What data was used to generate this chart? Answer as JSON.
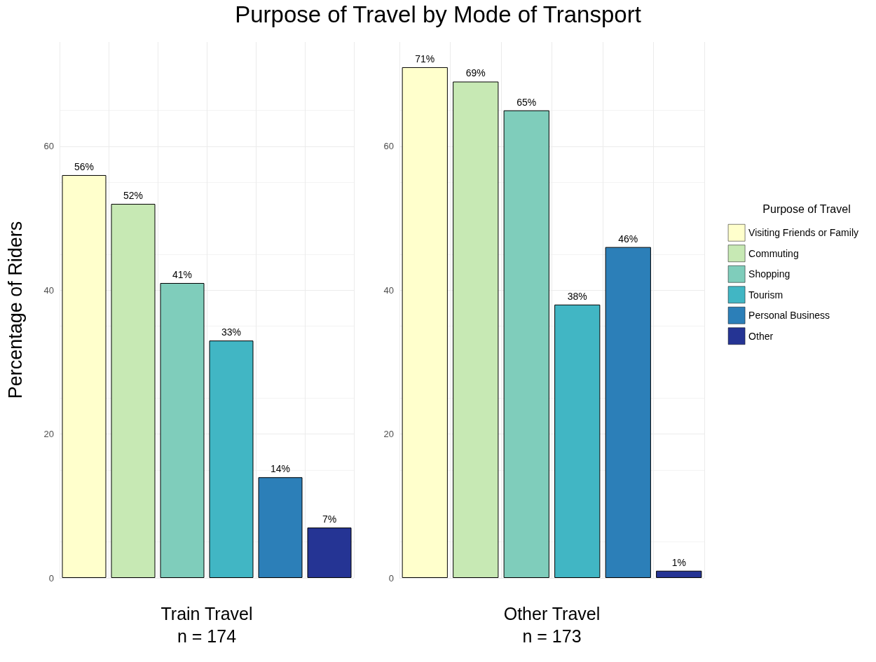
{
  "chart_data": [
    {
      "type": "bar",
      "title": "Purpose of Travel by Mode of Transport",
      "xlabel": "Train Travel\nn = 174",
      "ylabel": "Percentage of Riders",
      "categories": [
        null,
        null,
        null,
        null,
        null,
        null
      ],
      "series": [
        {
          "color": "#ffffcc",
          "values": [
            56,
            null,
            null,
            null,
            null,
            null
          ],
          "value_labels": [
            "56%",
            null,
            null,
            null,
            null,
            null
          ]
        },
        {
          "color": "#c7e9b4",
          "values": [
            null,
            52,
            null,
            null,
            null,
            null
          ],
          "value_labels": [
            null,
            "52%",
            null,
            null,
            null,
            null
          ]
        },
        {
          "color": "#7fcdbb",
          "values": [
            null,
            null,
            41,
            null,
            null,
            null
          ],
          "value_labels": [
            null,
            null,
            "41%",
            null,
            null,
            null
          ]
        },
        {
          "color": "#41b6c4",
          "values": [
            null,
            null,
            null,
            33,
            null,
            null
          ],
          "value_labels": [
            null,
            null,
            null,
            "33%",
            null,
            null
          ]
        },
        {
          "color": "#2c7fb8",
          "values": [
            null,
            null,
            null,
            null,
            14,
            null
          ],
          "value_labels": [
            null,
            null,
            null,
            null,
            "14%",
            null
          ]
        },
        {
          "color": "#253494",
          "values": [
            null,
            null,
            null,
            null,
            null,
            7
          ],
          "value_labels": [
            null,
            null,
            null,
            null,
            null,
            "7%"
          ]
        }
      ],
      "ylim": [
        0,
        74.5
      ],
      "yticks": [
        0,
        20,
        40,
        60
      ],
      "grid": true,
      "tick_labels": "y"
    },
    {
      "type": "bar",
      "xlabel": "Other Travel\nn = 173",
      "categories": [
        null,
        null,
        null,
        null,
        null,
        null
      ],
      "series": [
        {
          "name": "Visiting Friends or Family",
          "color": "#ffffcc",
          "values": [
            71,
            null,
            null,
            null,
            null,
            null
          ],
          "value_labels": [
            "71%",
            null,
            null,
            null,
            null,
            null
          ]
        },
        {
          "name": "Commuting",
          "color": "#c7e9b4",
          "values": [
            null,
            69,
            null,
            null,
            null,
            null
          ],
          "value_labels": [
            null,
            "69%",
            null,
            null,
            null,
            null
          ]
        },
        {
          "name": "Shopping",
          "color": "#7fcdbb",
          "values": [
            null,
            null,
            65,
            null,
            null,
            null
          ],
          "value_labels": [
            null,
            null,
            "65%",
            null,
            null,
            null
          ]
        },
        {
          "name": "Tourism",
          "color": "#41b6c4",
          "values": [
            null,
            null,
            null,
            38,
            null,
            null
          ],
          "value_labels": [
            null,
            null,
            null,
            "38%",
            null,
            null
          ]
        },
        {
          "name": "Personal Business",
          "color": "#2c7fb8",
          "values": [
            null,
            null,
            null,
            null,
            46,
            null
          ],
          "value_labels": [
            null,
            null,
            null,
            null,
            "46%",
            null
          ]
        },
        {
          "name": "Other",
          "color": "#253494",
          "values": [
            null,
            null,
            null,
            null,
            null,
            1
          ],
          "value_labels": [
            null,
            null,
            null,
            null,
            null,
            "1%"
          ]
        }
      ],
      "ylim": [
        0,
        74.5
      ],
      "yticks": [
        0,
        20,
        40,
        60
      ],
      "grid": true,
      "tick_labels": "y",
      "legend": "right",
      "legend_title": "Purpose of Travel"
    }
  ]
}
